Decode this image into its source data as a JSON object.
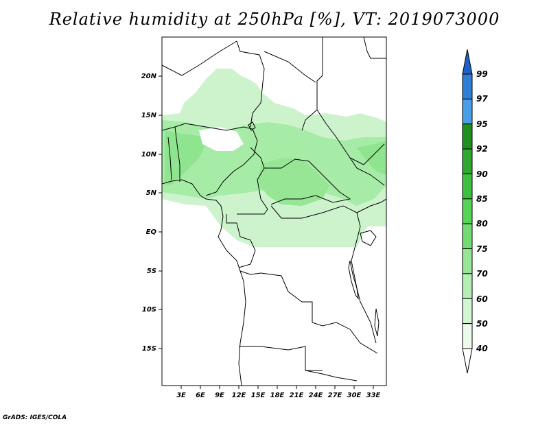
{
  "title": "Relative humidity at 250hPa [%], VT: 2019073000",
  "credit": "GrADS: IGES/COLA",
  "lat_labels": [
    "20N",
    "15N",
    "10N",
    "5N",
    "EQ",
    "5S",
    "10S",
    "15S"
  ],
  "lon_labels": [
    "3E",
    "6E",
    "9E",
    "12E",
    "15E",
    "18E",
    "21E",
    "24E",
    "27E",
    "30E",
    "33E"
  ],
  "colorbar": {
    "levels": [
      "99",
      "97",
      "95",
      "92",
      "90",
      "85",
      "80",
      "75",
      "70",
      "60",
      "50",
      "40"
    ],
    "colors": [
      "#1f5fc8",
      "#2f7fd8",
      "#4a9ee8",
      "#1f8f1f",
      "#2fa82f",
      "#3fbf3f",
      "#55d455",
      "#72dc72",
      "#96e696",
      "#b6eeb6",
      "#d2f5d2",
      "#ecfbec"
    ]
  }
}
